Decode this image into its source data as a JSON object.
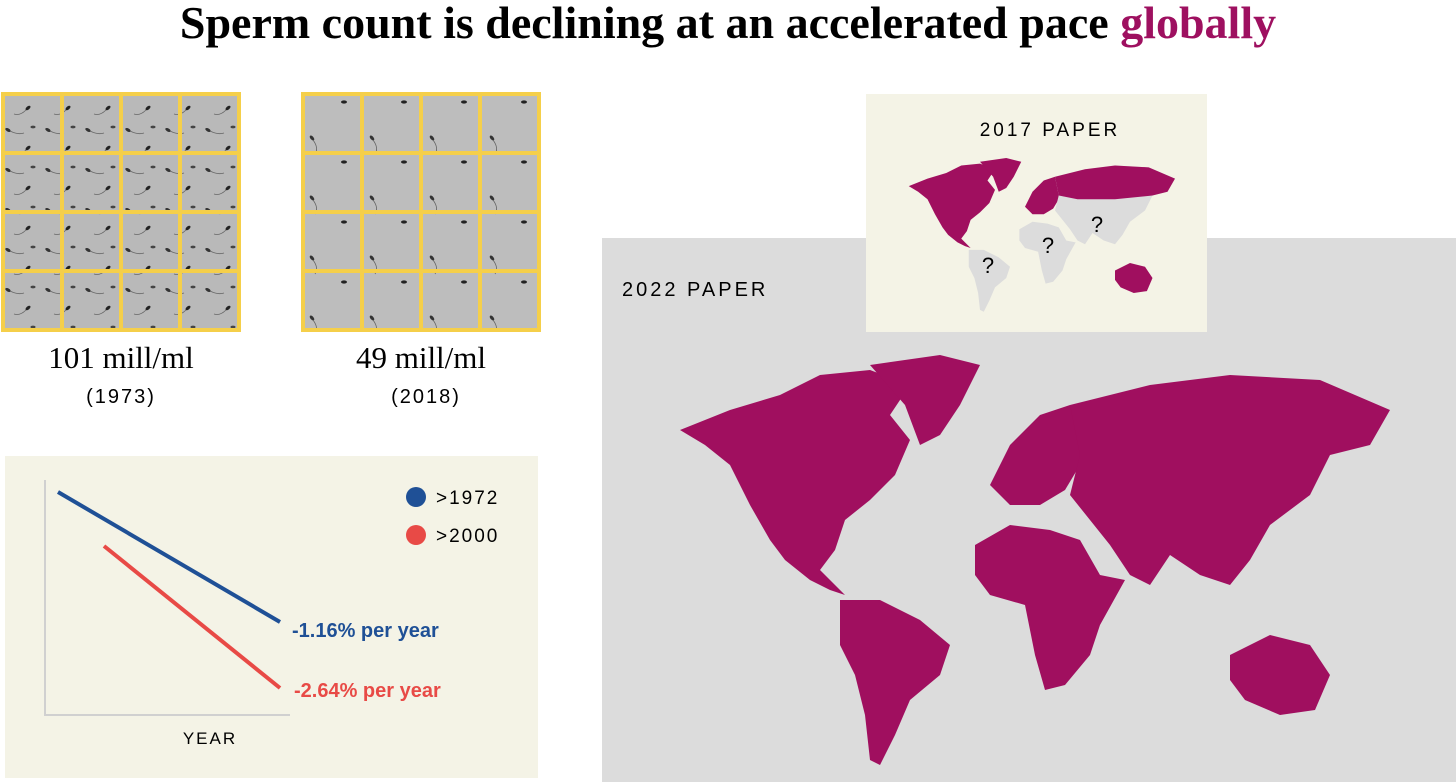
{
  "title": {
    "text": "Sperm count is declining at an accelerated pace",
    "highlight": "globally"
  },
  "samples": [
    {
      "count": "101 mill/ml",
      "year": "(1973)"
    },
    {
      "count": "49 mill/ml",
      "year": "(2018)"
    }
  ],
  "trend_chart": {
    "legend": [
      ">1972",
      ">2000"
    ],
    "annotations": [
      "-1.16% per year",
      "-2.64% per year"
    ],
    "x_label": "YEAR"
  },
  "maps": {
    "paper_2017": "2017 PAPER",
    "paper_2022": "2022 PAPER",
    "unknown_regions": [
      "?",
      "?",
      "?"
    ]
  }
}
